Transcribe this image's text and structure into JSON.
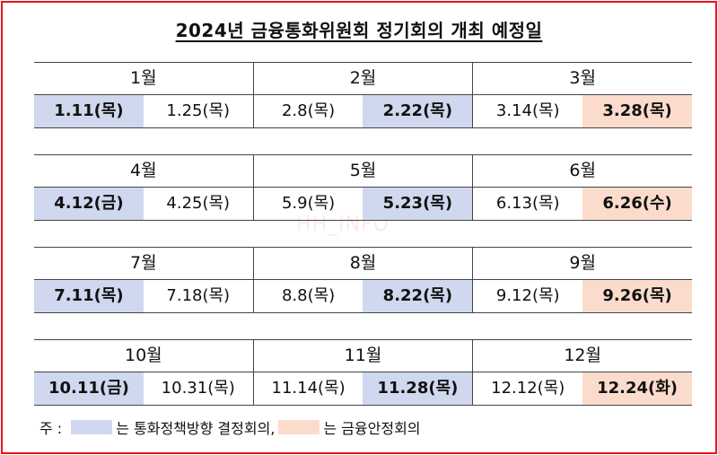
{
  "title": "2024년 금융통화위원회 정기회의 개최 예정일",
  "watermark": "HH_INFO",
  "quarters": [
    {
      "months": [
        "1월",
        "2월",
        "3월"
      ],
      "dates": [
        {
          "text": "1.11(목)",
          "type": "policy"
        },
        {
          "text": "1.25(목)",
          "type": ""
        },
        {
          "text": "2.8(목)",
          "type": ""
        },
        {
          "text": "2.22(목)",
          "type": "policy"
        },
        {
          "text": "3.14(목)",
          "type": ""
        },
        {
          "text": "3.28(목)",
          "type": "stability"
        }
      ]
    },
    {
      "months": [
        "4월",
        "5월",
        "6월"
      ],
      "dates": [
        {
          "text": "4.12(금)",
          "type": "policy"
        },
        {
          "text": "4.25(목)",
          "type": ""
        },
        {
          "text": "5.9(목)",
          "type": ""
        },
        {
          "text": "5.23(목)",
          "type": "policy"
        },
        {
          "text": "6.13(목)",
          "type": ""
        },
        {
          "text": "6.26(수)",
          "type": "stability"
        }
      ]
    },
    {
      "months": [
        "7월",
        "8월",
        "9월"
      ],
      "dates": [
        {
          "text": "7.11(목)",
          "type": "policy"
        },
        {
          "text": "7.18(목)",
          "type": ""
        },
        {
          "text": "8.8(목)",
          "type": ""
        },
        {
          "text": "8.22(목)",
          "type": "policy"
        },
        {
          "text": "9.12(목)",
          "type": ""
        },
        {
          "text": "9.26(목)",
          "type": "stability"
        }
      ]
    },
    {
      "months": [
        "10월",
        "11월",
        "12월"
      ],
      "dates": [
        {
          "text": "10.11(금)",
          "type": "policy"
        },
        {
          "text": "10.31(목)",
          "type": ""
        },
        {
          "text": "11.14(목)",
          "type": ""
        },
        {
          "text": "11.28(목)",
          "type": "policy"
        },
        {
          "text": "12.12(목)",
          "type": ""
        },
        {
          "text": "12.24(화)",
          "type": "stability"
        }
      ]
    }
  ],
  "note": {
    "prefix": "주 :",
    "policy_text": "는 통화정책방향 결정회의,",
    "stability_text": "는 금융안정회의"
  },
  "colors": {
    "policy": "#cfd8ef",
    "stability": "#fbdccc",
    "frame": "#e8141c"
  }
}
